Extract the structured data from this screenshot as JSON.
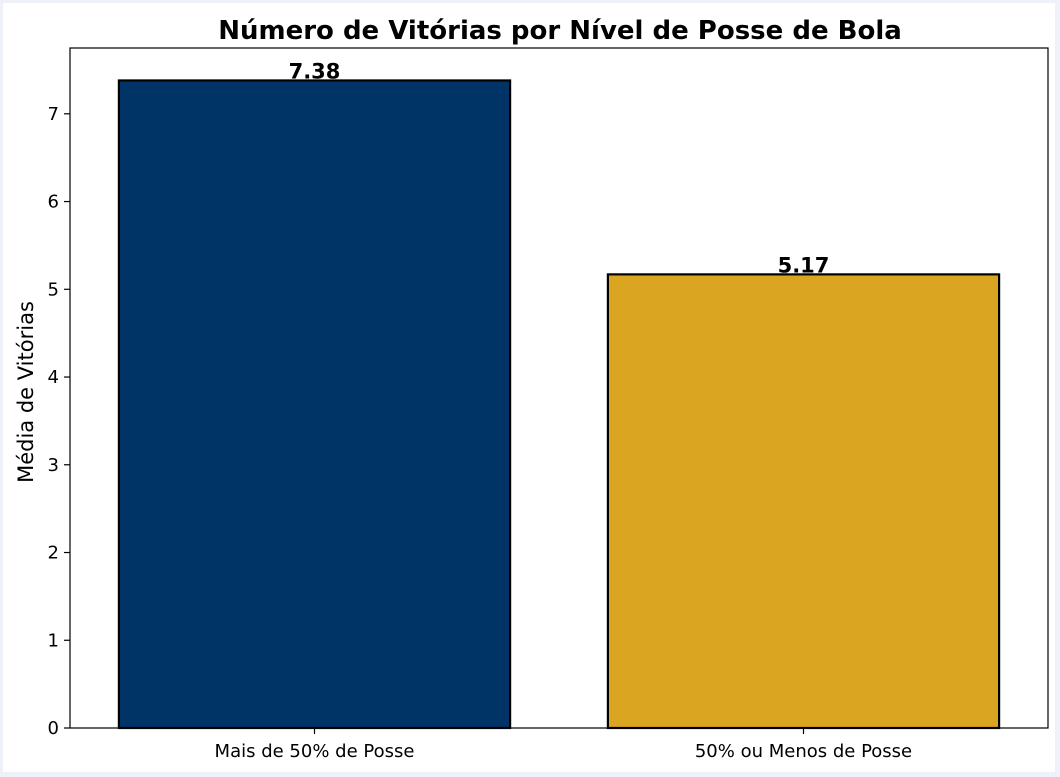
{
  "chart_data": {
    "type": "bar",
    "title": "Número de Vitórias por Nível de Posse de Bola",
    "xlabel": "",
    "ylabel": "Média de Vitórias",
    "categories": [
      "Mais de 50% de Posse",
      "50% ou Menos de Posse"
    ],
    "values": [
      7.38,
      5.17
    ],
    "value_labels": [
      "7.38",
      "5.17"
    ],
    "colors": [
      "#003366",
      "#DAA520"
    ],
    "edge_color": "#000000",
    "ylim": [
      0,
      7.75
    ],
    "yticks": [
      0,
      1,
      2,
      3,
      4,
      5,
      6,
      7
    ],
    "grid": false,
    "legend": "none"
  }
}
